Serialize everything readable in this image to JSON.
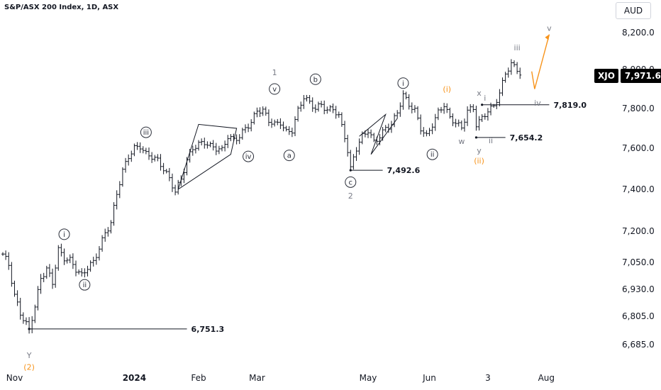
{
  "header": {
    "title": "S&P/ASX 200 Index, 1D, ASX",
    "currency": "AUD"
  },
  "price_tag": {
    "symbol": "XJO",
    "value": "7,971.6"
  },
  "colors": {
    "bars": "#131722",
    "orange": "#f7931a",
    "wave_gray": "#787b86",
    "circle": "#2a2e39",
    "axis_text": "#131722"
  },
  "chart_data": {
    "type": "ohlc",
    "title": "S&P/ASX 200 Index, 1D, ASX",
    "y_ticks": [
      6685,
      6805,
      6930,
      7050,
      7200,
      7400,
      7600,
      7800,
      8000,
      8200
    ],
    "y_tick_labels": [
      "6,685.0",
      "6,805.0",
      "6,930.0",
      "7,050.0",
      "7,200.0",
      "7,400.0",
      "7,600.0",
      "7,800.0",
      "8,000.0",
      "8,200.0"
    ],
    "x_tick_labels": [
      {
        "label": "Nov",
        "bold": false,
        "bar": 4
      },
      {
        "label": "2024",
        "bold": true,
        "bar": 45
      },
      {
        "label": "Feb",
        "bold": false,
        "bar": 67
      },
      {
        "label": "Mar",
        "bold": false,
        "bar": 87
      },
      {
        "label": "May",
        "bold": false,
        "bar": 125
      },
      {
        "label": "Jun",
        "bold": false,
        "bar": 146
      },
      {
        "label": "3",
        "bold": false,
        "bar": 166
      },
      {
        "label": "Aug",
        "bold": false,
        "bar": 186
      }
    ],
    "last_price": 7971.6,
    "close_path": [
      [
        0,
        7090
      ],
      [
        2,
        7040
      ],
      [
        4,
        6900
      ],
      [
        6,
        6820
      ],
      [
        8,
        6770
      ],
      [
        9,
        6751.3
      ],
      [
        11,
        6850
      ],
      [
        13,
        6980
      ],
      [
        15,
        7020
      ],
      [
        17,
        6960
      ],
      [
        19,
        7110
      ],
      [
        21,
        7070
      ],
      [
        23,
        7060
      ],
      [
        25,
        7020
      ],
      [
        27,
        6990
      ],
      [
        29,
        7030
      ],
      [
        31,
        7050
      ],
      [
        33,
        7120
      ],
      [
        35,
        7190
      ],
      [
        37,
        7240
      ],
      [
        39,
        7380
      ],
      [
        41,
        7490
      ],
      [
        43,
        7560
      ],
      [
        45,
        7600
      ],
      [
        47,
        7610
      ],
      [
        49,
        7570
      ],
      [
        51,
        7560
      ],
      [
        53,
        7540
      ],
      [
        55,
        7500
      ],
      [
        57,
        7450
      ],
      [
        59,
        7390
      ],
      [
        61,
        7450
      ],
      [
        63,
        7540
      ],
      [
        65,
        7600
      ],
      [
        67,
        7620
      ],
      [
        69,
        7630
      ],
      [
        71,
        7610
      ],
      [
        73,
        7600
      ],
      [
        75,
        7590
      ],
      [
        77,
        7660
      ],
      [
        79,
        7640
      ],
      [
        81,
        7660
      ],
      [
        83,
        7700
      ],
      [
        85,
        7730
      ],
      [
        87,
        7790
      ],
      [
        89,
        7790
      ],
      [
        91,
        7740
      ],
      [
        93,
        7720
      ],
      [
        95,
        7730
      ],
      [
        97,
        7680
      ],
      [
        99,
        7690
      ],
      [
        101,
        7790
      ],
      [
        103,
        7860
      ],
      [
        105,
        7830
      ],
      [
        107,
        7800
      ],
      [
        109,
        7820
      ],
      [
        111,
        7790
      ],
      [
        113,
        7800
      ],
      [
        115,
        7760
      ],
      [
        117,
        7660
      ],
      [
        119,
        7510
      ],
      [
        121,
        7600
      ],
      [
        123,
        7660
      ],
      [
        125,
        7690
      ],
      [
        127,
        7630
      ],
      [
        129,
        7660
      ],
      [
        131,
        7700
      ],
      [
        133,
        7720
      ],
      [
        135,
        7780
      ],
      [
        137,
        7870
      ],
      [
        139,
        7820
      ],
      [
        141,
        7790
      ],
      [
        143,
        7700
      ],
      [
        145,
        7660
      ],
      [
        147,
        7720
      ],
      [
        149,
        7780
      ],
      [
        151,
        7820
      ],
      [
        153,
        7750
      ],
      [
        155,
        7730
      ],
      [
        157,
        7700
      ],
      [
        159,
        7790
      ],
      [
        161,
        7800
      ],
      [
        162,
        7720
      ],
      [
        164,
        7750
      ],
      [
        166,
        7790
      ],
      [
        168,
        7810
      ],
      [
        170,
        7880
      ],
      [
        172,
        7980
      ],
      [
        174,
        8030
      ],
      [
        176,
        8000
      ],
      [
        177,
        7971.6
      ]
    ],
    "levels": [
      {
        "price": 6751.3,
        "label": "6,751.3",
        "bar_from": 9,
        "bar_to": 63
      },
      {
        "price": 7492.6,
        "label": "7,492.6",
        "bar_from": 119,
        "bar_to": 130
      },
      {
        "price": 7654.2,
        "label": "7,654.2",
        "bar_from": 162,
        "bar_to": 172
      },
      {
        "price": 7819.0,
        "label": "7,819.0",
        "bar_from": 164,
        "bar_to": 187
      }
    ],
    "wave_labels": [
      {
        "text": "Y",
        "bar": 9,
        "price": 6640,
        "style": "gray"
      },
      {
        "text": "(2)",
        "bar": 9,
        "price": 6590,
        "style": "orange"
      },
      {
        "text": "i",
        "bar": 21,
        "price": 7185,
        "style": "circle"
      },
      {
        "text": "ii",
        "bar": 28,
        "price": 6950,
        "style": "circle"
      },
      {
        "text": "iii",
        "bar": 49,
        "price": 7680,
        "style": "circle"
      },
      {
        "text": "iv",
        "bar": 84,
        "price": 7560,
        "style": "circle"
      },
      {
        "text": "v",
        "bar": 93,
        "price": 7900,
        "style": "circle"
      },
      {
        "text": "1",
        "bar": 93,
        "price": 7985,
        "style": "gray"
      },
      {
        "text": "a",
        "bar": 98,
        "price": 7565,
        "style": "circle"
      },
      {
        "text": "b",
        "bar": 107,
        "price": 7950,
        "style": "circle"
      },
      {
        "text": "c",
        "bar": 119,
        "price": 7435,
        "style": "circle"
      },
      {
        "text": "2",
        "bar": 119,
        "price": 7370,
        "style": "gray"
      },
      {
        "text": "i",
        "bar": 137,
        "price": 7930,
        "style": "circle"
      },
      {
        "text": "ii",
        "bar": 147,
        "price": 7570,
        "style": "circle"
      },
      {
        "text": "(i)",
        "bar": 152,
        "price": 7900,
        "style": "orange"
      },
      {
        "text": "w",
        "bar": 157,
        "price": 7635,
        "style": "gray"
      },
      {
        "text": "x",
        "bar": 163,
        "price": 7880,
        "style": "gray"
      },
      {
        "text": "i",
        "bar": 165,
        "price": 7855,
        "style": "gray"
      },
      {
        "text": "ii",
        "bar": 167,
        "price": 7640,
        "style": "gray"
      },
      {
        "text": "y",
        "bar": 163,
        "price": 7590,
        "style": "gray"
      },
      {
        "text": "(ii)",
        "bar": 163,
        "price": 7540,
        "style": "orange"
      },
      {
        "text": "iii",
        "bar": 176,
        "price": 8120,
        "style": "gray"
      },
      {
        "text": "iv",
        "bar": 183,
        "price": 7830,
        "style": "gray"
      },
      {
        "text": "v",
        "bar": 187,
        "price": 8225,
        "style": "gray"
      }
    ],
    "projection": [
      [
        181,
        7990
      ],
      [
        182,
        7900
      ],
      [
        187,
        8190
      ]
    ],
    "diagonal_lines": [
      [
        [
          60,
          7400
        ],
        [
          67,
          7720
        ],
        [
          80,
          7700
        ],
        [
          78,
          7570
        ],
        [
          60,
          7400
        ]
      ],
      [
        [
          122,
          7660
        ],
        [
          131,
          7770
        ],
        [
          126,
          7570
        ],
        [
          135,
          7750
        ]
      ]
    ]
  }
}
